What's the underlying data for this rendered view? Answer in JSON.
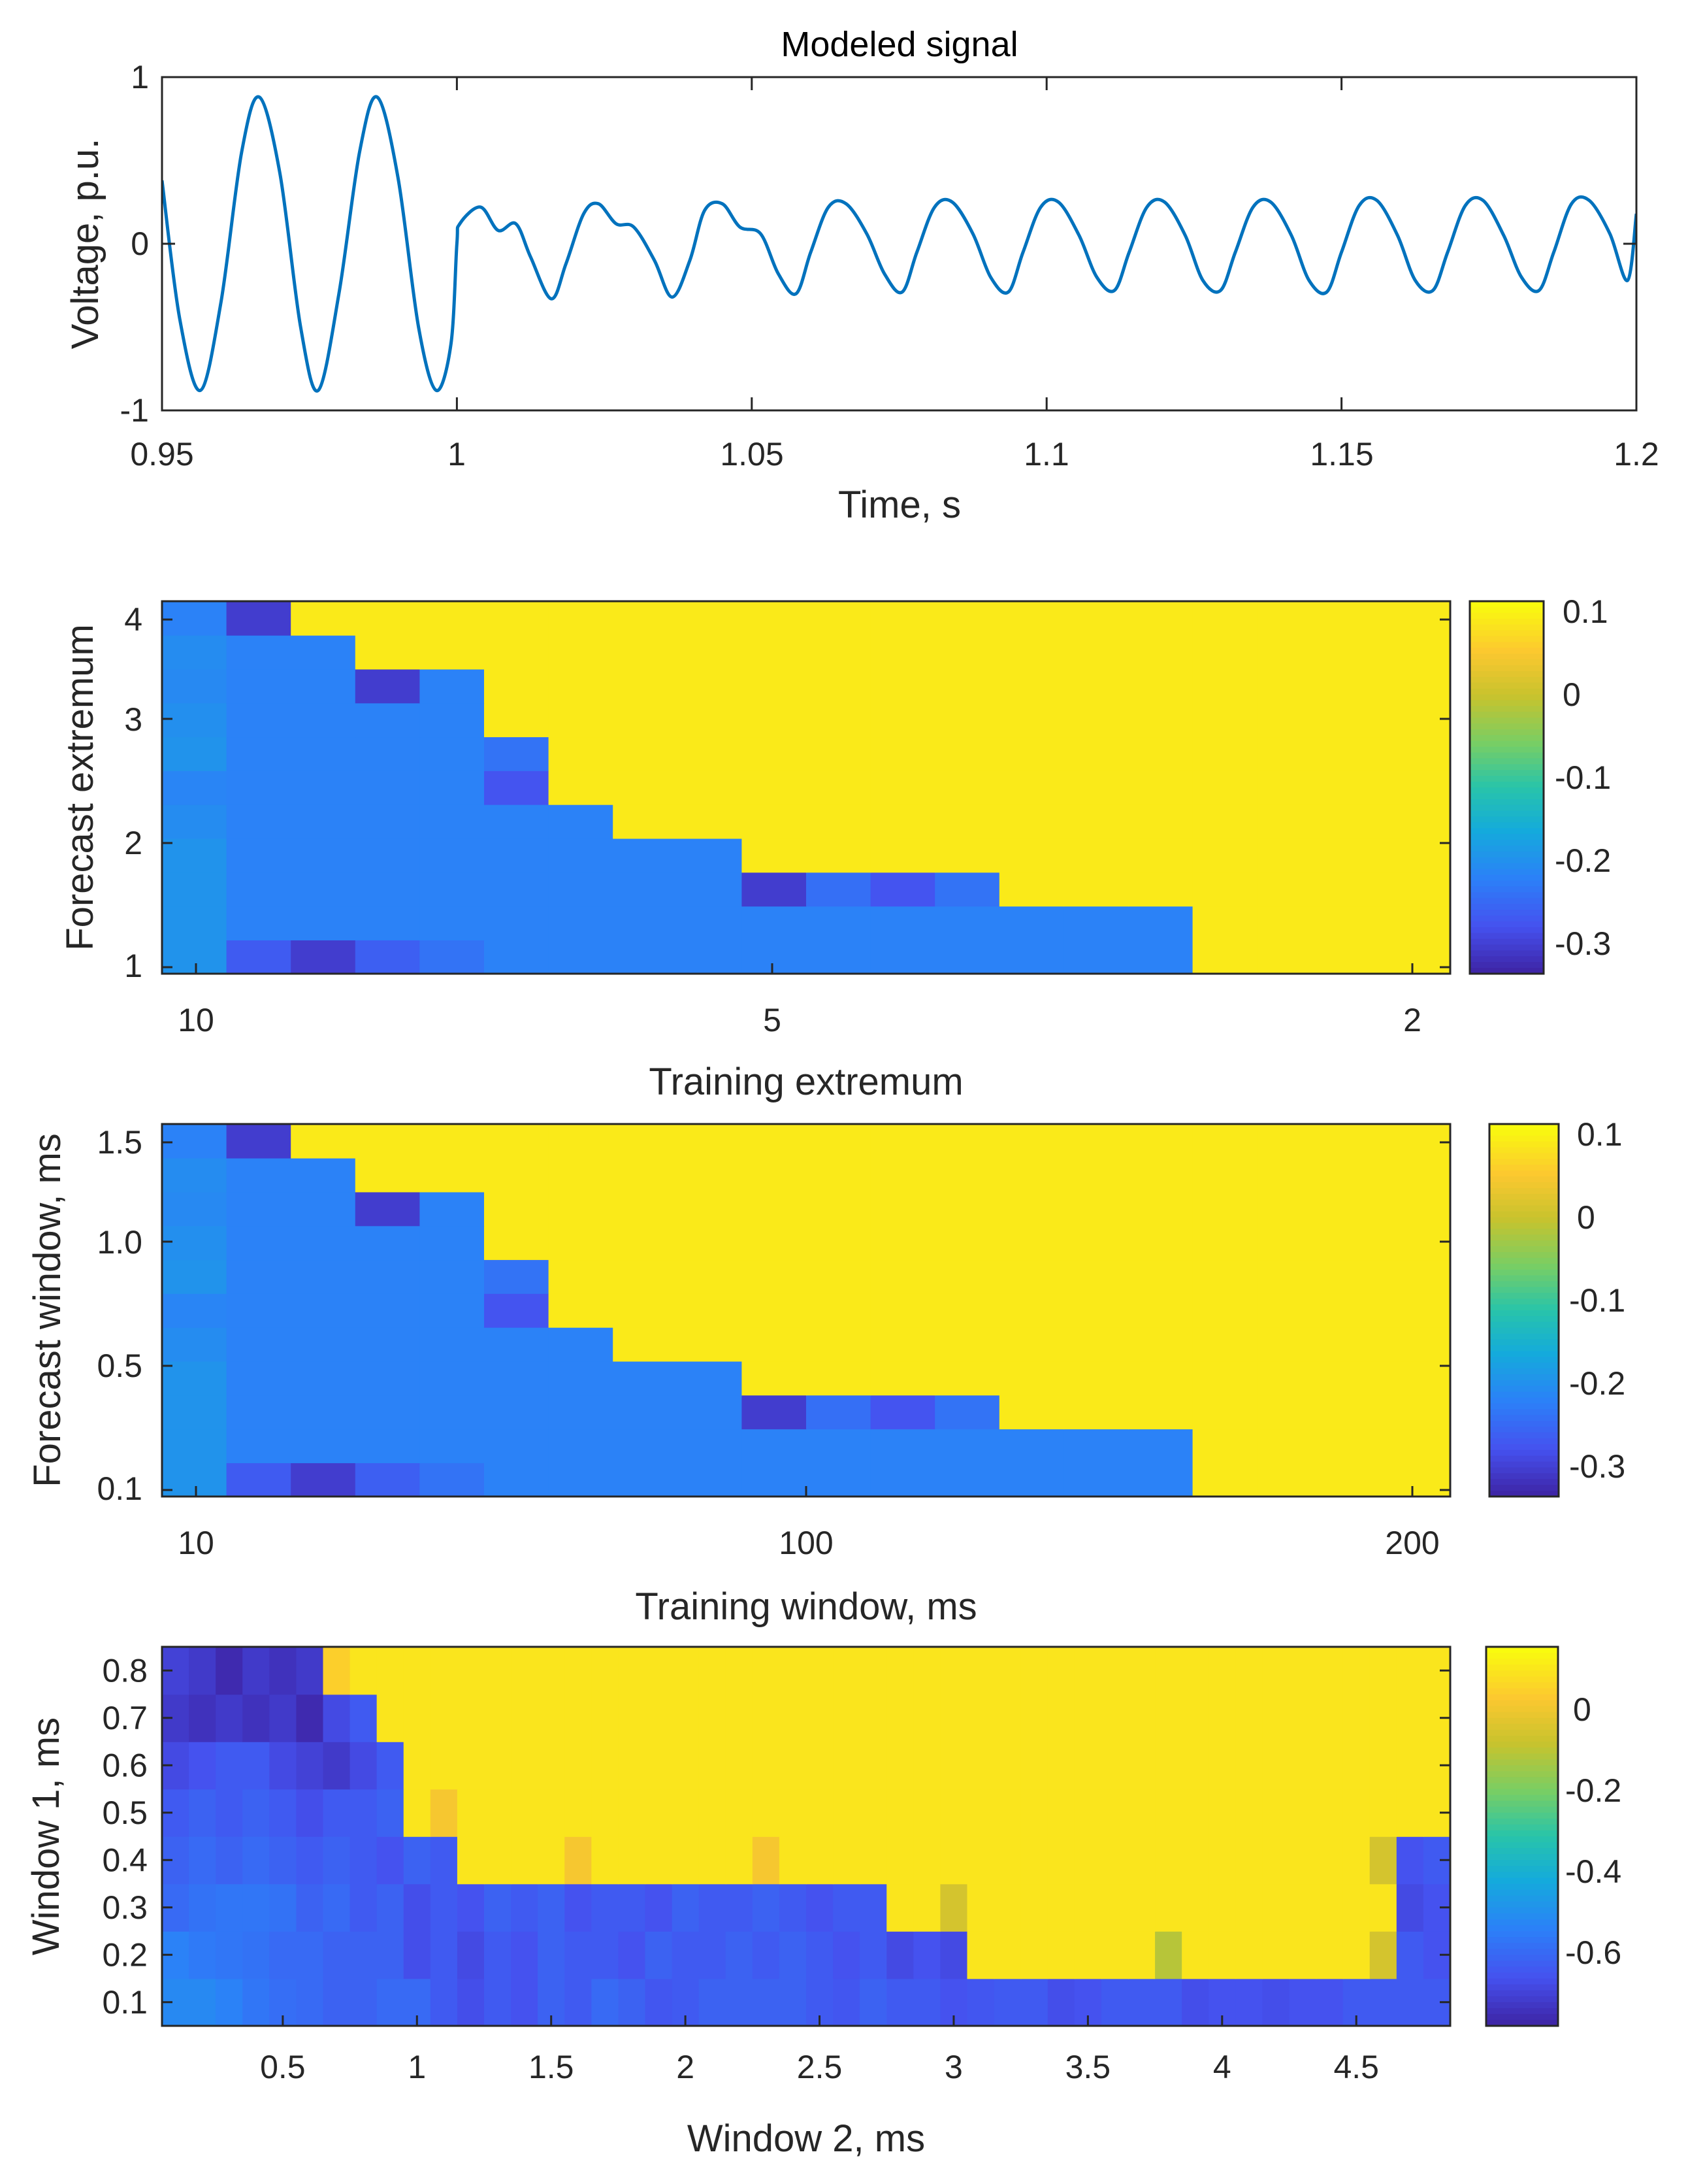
{
  "figure": {
    "signal": {
      "title": "Modeled signal",
      "xlabel": "Time, s",
      "ylabel": "Voltage, p.u.",
      "xticks": [
        "0.95",
        "1",
        "1.05",
        "1.1",
        "1.15",
        "1.2"
      ],
      "yticks": [
        "-1",
        "0",
        "1"
      ]
    },
    "heat1": {
      "xlabel": "Training extremum",
      "ylabel": "Forecast extremum",
      "xticks": [
        "10",
        "5",
        "2"
      ],
      "yticks": [
        "1",
        "2",
        "3",
        "4"
      ],
      "cbar_ticks": [
        "0.1",
        "0",
        "-0.1",
        "-0.2",
        "-0.3"
      ]
    },
    "heat2": {
      "xlabel": "Training window, ms",
      "ylabel": "Forecast window, ms",
      "xticks": [
        "10",
        "100",
        "200"
      ],
      "yticks": [
        "0.1",
        "0.5",
        "1.0",
        "1.5"
      ],
      "cbar_ticks": [
        "0.1",
        "0",
        "-0.1",
        "-0.2",
        "-0.3"
      ]
    },
    "heat3": {
      "xlabel": "Window 2, ms",
      "ylabel": "Window 1, ms",
      "xticks": [
        "0.5",
        "1",
        "1.5",
        "2",
        "2.5",
        "3",
        "3.5",
        "4",
        "4.5"
      ],
      "yticks": [
        "0.1",
        "0.2",
        "0.3",
        "0.4",
        "0.5",
        "0.6",
        "0.7",
        "0.8"
      ],
      "cbar_ticks": [
        "0",
        "-0.2",
        "-0.4",
        "-0.6"
      ]
    }
  },
  "chart_data": [
    {
      "type": "line",
      "title": "Modeled signal",
      "xlabel": "Time, s",
      "ylabel": "Voltage, p.u.",
      "xlim": [
        0.95,
        1.2
      ],
      "ylim": [
        -1,
        1
      ],
      "line_color": "#0072BD",
      "series": [
        {
          "x": [
            0.95,
            0.953,
            0.9565,
            0.96,
            0.9635,
            0.9665,
            0.97,
            0.9735,
            0.9765,
            0.98,
            0.9835,
            0.9865,
            0.99,
            0.9935,
            0.9965,
            0.999,
            1.0,
            1.0005,
            1.004,
            1.007,
            1.01,
            1.0125,
            1.016,
            1.0185,
            1.0215,
            1.024,
            1.027,
            1.03,
            1.0335,
            1.0365,
            1.0395,
            1.042,
            1.045,
            1.048,
            1.0515,
            1.0545,
            1.0575,
            1.06,
            1.063,
            1.066,
            1.0695,
            1.0725,
            1.0755,
            1.078,
            1.081,
            1.084,
            1.0875,
            1.0905,
            1.0935,
            1.096,
            1.099,
            1.102,
            1.1055,
            1.1085,
            1.1115,
            1.114,
            1.117,
            1.12,
            1.1235,
            1.1265,
            1.1295,
            1.132,
            1.135,
            1.138,
            1.1415,
            1.1445,
            1.1475,
            1.15,
            1.153,
            1.156,
            1.1595,
            1.1625,
            1.1655,
            1.168,
            1.171,
            1.174,
            1.1775,
            1.1805,
            1.1835,
            1.186,
            1.189,
            1.192,
            1.1955,
            1.1985,
            1.2
          ],
          "y": [
            0.38,
            -0.45,
            -0.88,
            -0.35,
            0.55,
            0.88,
            0.42,
            -0.5,
            -0.88,
            -0.3,
            0.55,
            0.88,
            0.4,
            -0.5,
            -0.88,
            -0.6,
            0.0,
            0.12,
            0.22,
            0.08,
            0.12,
            -0.08,
            -0.33,
            -0.12,
            0.18,
            0.24,
            0.12,
            0.1,
            -0.1,
            -0.32,
            -0.1,
            0.2,
            0.24,
            0.1,
            0.06,
            -0.18,
            -0.3,
            -0.05,
            0.22,
            0.24,
            0.06,
            -0.18,
            -0.29,
            -0.05,
            0.22,
            0.25,
            0.06,
            -0.2,
            -0.29,
            -0.05,
            0.22,
            0.25,
            0.05,
            -0.2,
            -0.28,
            -0.05,
            0.22,
            0.25,
            0.05,
            -0.22,
            -0.28,
            -0.05,
            0.22,
            0.25,
            0.05,
            -0.22,
            -0.29,
            -0.05,
            0.23,
            0.26,
            0.05,
            -0.22,
            -0.28,
            -0.05,
            0.23,
            0.26,
            0.05,
            -0.2,
            -0.28,
            -0.05,
            0.24,
            0.26,
            0.06,
            -0.22,
            0.18
          ]
        }
      ]
    },
    {
      "type": "heatmap",
      "xlabel": "Training extremum",
      "ylabel": "Forecast extremum",
      "colormap": "parula",
      "clim": [
        -0.35,
        0.12
      ],
      "x_tick_labels": [
        "10",
        "5",
        "2"
      ],
      "y_range": [
        1,
        4
      ],
      "cols": 20,
      "rows": 11,
      "rows_bottom_to_top": [
        [
          -0.205,
          -0.28,
          -0.32,
          -0.275,
          -0.25,
          -0.23,
          -0.23,
          -0.23,
          -0.23,
          -0.23,
          -0.23,
          -0.23,
          -0.23,
          -0.23,
          -0.23,
          -0.23,
          0.1,
          0.1,
          0.1,
          0.1
        ],
        [
          -0.205,
          -0.23,
          -0.23,
          -0.23,
          -0.23,
          -0.23,
          -0.23,
          -0.23,
          -0.23,
          -0.23,
          -0.23,
          -0.23,
          -0.23,
          -0.23,
          -0.23,
          -0.23,
          0.1,
          0.1,
          0.1,
          0.1
        ],
        [
          -0.205,
          -0.23,
          -0.23,
          -0.23,
          -0.23,
          -0.23,
          -0.23,
          -0.23,
          -0.23,
          -0.32,
          -0.255,
          -0.29,
          -0.25,
          0.1,
          0.1,
          0.1,
          0.1,
          0.1,
          0.1,
          0.1
        ],
        [
          -0.205,
          -0.23,
          -0.23,
          -0.23,
          -0.23,
          -0.23,
          -0.23,
          -0.23,
          -0.23,
          0.1,
          0.1,
          0.1,
          0.1,
          0.1,
          0.1,
          0.1,
          0.1,
          0.1,
          0.1,
          0.1
        ],
        [
          -0.215,
          -0.23,
          -0.23,
          -0.23,
          -0.23,
          -0.23,
          -0.23,
          0.1,
          0.1,
          0.1,
          0.1,
          0.1,
          0.1,
          0.1,
          0.1,
          0.1,
          0.1,
          0.1,
          0.1,
          0.1
        ],
        [
          -0.225,
          -0.23,
          -0.23,
          -0.23,
          -0.23,
          -0.29,
          0.1,
          0.1,
          0.1,
          0.1,
          0.1,
          0.1,
          0.1,
          0.1,
          0.1,
          0.1,
          0.1,
          0.1,
          0.1,
          0.1
        ],
        [
          -0.205,
          -0.23,
          -0.23,
          -0.23,
          -0.23,
          -0.25,
          0.1,
          0.1,
          0.1,
          0.1,
          0.1,
          0.1,
          0.1,
          0.1,
          0.1,
          0.1,
          0.1,
          0.1,
          0.1,
          0.1
        ],
        [
          -0.21,
          -0.23,
          -0.23,
          -0.23,
          -0.23,
          0.1,
          0.1,
          0.1,
          0.1,
          0.1,
          0.1,
          0.1,
          0.1,
          0.1,
          0.1,
          0.1,
          0.1,
          0.1,
          0.1,
          0.1
        ],
        [
          -0.22,
          -0.23,
          -0.23,
          -0.32,
          -0.23,
          0.1,
          0.1,
          0.1,
          0.1,
          0.1,
          0.1,
          0.1,
          0.1,
          0.1,
          0.1,
          0.1,
          0.1,
          0.1,
          0.1,
          0.1
        ],
        [
          -0.215,
          -0.23,
          -0.23,
          0.1,
          0.1,
          0.1,
          0.1,
          0.1,
          0.1,
          0.1,
          0.1,
          0.1,
          0.1,
          0.1,
          0.1,
          0.1,
          0.1,
          0.1,
          0.1,
          0.1
        ],
        [
          -0.23,
          -0.32,
          0.1,
          0.1,
          0.1,
          0.1,
          0.1,
          0.1,
          0.1,
          0.1,
          0.1,
          0.1,
          0.1,
          0.1,
          0.1,
          0.1,
          0.1,
          0.1,
          0.1,
          0.1
        ]
      ]
    },
    {
      "type": "heatmap",
      "xlabel": "Training window, ms",
      "ylabel": "Forecast window, ms",
      "colormap": "parula",
      "clim": [
        -0.35,
        0.12
      ],
      "x_tick_labels": [
        "10",
        "100",
        "200"
      ],
      "y_range": [
        0.1,
        1.5
      ],
      "cols": 20,
      "rows": 11,
      "rows_bottom_to_top": [
        [
          -0.205,
          -0.28,
          -0.32,
          -0.275,
          -0.25,
          -0.23,
          -0.23,
          -0.23,
          -0.23,
          -0.23,
          -0.23,
          -0.23,
          -0.23,
          -0.23,
          -0.23,
          -0.23,
          0.1,
          0.1,
          0.1,
          0.1
        ],
        [
          -0.205,
          -0.23,
          -0.23,
          -0.23,
          -0.23,
          -0.23,
          -0.23,
          -0.23,
          -0.23,
          -0.23,
          -0.23,
          -0.23,
          -0.23,
          -0.23,
          -0.23,
          -0.23,
          0.1,
          0.1,
          0.1,
          0.1
        ],
        [
          -0.205,
          -0.23,
          -0.23,
          -0.23,
          -0.23,
          -0.23,
          -0.23,
          -0.23,
          -0.23,
          -0.32,
          -0.255,
          -0.29,
          -0.25,
          0.1,
          0.1,
          0.1,
          0.1,
          0.1,
          0.1,
          0.1
        ],
        [
          -0.205,
          -0.23,
          -0.23,
          -0.23,
          -0.23,
          -0.23,
          -0.23,
          -0.23,
          -0.23,
          0.1,
          0.1,
          0.1,
          0.1,
          0.1,
          0.1,
          0.1,
          0.1,
          0.1,
          0.1,
          0.1
        ],
        [
          -0.215,
          -0.23,
          -0.23,
          -0.23,
          -0.23,
          -0.23,
          -0.23,
          0.1,
          0.1,
          0.1,
          0.1,
          0.1,
          0.1,
          0.1,
          0.1,
          0.1,
          0.1,
          0.1,
          0.1,
          0.1
        ],
        [
          -0.225,
          -0.23,
          -0.23,
          -0.23,
          -0.23,
          -0.29,
          0.1,
          0.1,
          0.1,
          0.1,
          0.1,
          0.1,
          0.1,
          0.1,
          0.1,
          0.1,
          0.1,
          0.1,
          0.1,
          0.1
        ],
        [
          -0.205,
          -0.23,
          -0.23,
          -0.23,
          -0.23,
          -0.25,
          0.1,
          0.1,
          0.1,
          0.1,
          0.1,
          0.1,
          0.1,
          0.1,
          0.1,
          0.1,
          0.1,
          0.1,
          0.1,
          0.1
        ],
        [
          -0.21,
          -0.23,
          -0.23,
          -0.23,
          -0.23,
          0.1,
          0.1,
          0.1,
          0.1,
          0.1,
          0.1,
          0.1,
          0.1,
          0.1,
          0.1,
          0.1,
          0.1,
          0.1,
          0.1,
          0.1
        ],
        [
          -0.22,
          -0.23,
          -0.23,
          -0.32,
          -0.23,
          0.1,
          0.1,
          0.1,
          0.1,
          0.1,
          0.1,
          0.1,
          0.1,
          0.1,
          0.1,
          0.1,
          0.1,
          0.1,
          0.1,
          0.1
        ],
        [
          -0.215,
          -0.23,
          -0.23,
          0.1,
          0.1,
          0.1,
          0.1,
          0.1,
          0.1,
          0.1,
          0.1,
          0.1,
          0.1,
          0.1,
          0.1,
          0.1,
          0.1,
          0.1,
          0.1,
          0.1
        ],
        [
          -0.23,
          -0.32,
          0.1,
          0.1,
          0.1,
          0.1,
          0.1,
          0.1,
          0.1,
          0.1,
          0.1,
          0.1,
          0.1,
          0.1,
          0.1,
          0.1,
          0.1,
          0.1,
          0.1,
          0.1
        ]
      ]
    },
    {
      "type": "heatmap",
      "xlabel": "Window 2, ms",
      "ylabel": "Window 1, ms",
      "colormap": "parula",
      "clim": [
        -0.75,
        0.15
      ],
      "x_range": [
        0.05,
        4.85
      ],
      "y_range": [
        0.05,
        0.85
      ],
      "cols": 48,
      "rows": 8,
      "rows_bottom_to_top": [
        [
          -0.5,
          -0.5,
          -0.52,
          -0.55,
          -0.57,
          -0.58,
          -0.6,
          -0.6,
          -0.58,
          -0.58,
          -0.62,
          -0.65,
          -0.62,
          -0.64,
          -0.6,
          -0.62,
          -0.58,
          -0.6,
          -0.63,
          -0.62,
          -0.6,
          -0.6,
          -0.6,
          -0.6,
          -0.62,
          -0.63,
          -0.6,
          -0.62,
          -0.62,
          -0.64,
          -0.63,
          -0.62,
          -0.62,
          -0.65,
          -0.64,
          -0.62,
          -0.62,
          -0.62,
          -0.65,
          -0.64,
          -0.64,
          -0.65,
          -0.64,
          -0.64,
          -0.62,
          -0.62,
          -0.62,
          -0.62
        ],
        [
          -0.52,
          -0.54,
          -0.55,
          -0.56,
          -0.58,
          -0.58,
          -0.6,
          -0.6,
          -0.6,
          -0.65,
          -0.62,
          -0.66,
          -0.62,
          -0.64,
          -0.6,
          -0.62,
          -0.62,
          -0.64,
          -0.6,
          -0.62,
          -0.62,
          -0.6,
          -0.62,
          -0.6,
          -0.62,
          -0.64,
          -0.62,
          -0.66,
          -0.64,
          -0.66,
          0.1,
          0.1,
          0.1,
          0.1,
          0.1,
          0.1,
          0.1,
          -0.1,
          0.1,
          0.1,
          0.1,
          0.1,
          0.1,
          0.1,
          0.1,
          -0.05,
          -0.62,
          -0.64
        ],
        [
          -0.58,
          -0.56,
          -0.55,
          -0.55,
          -0.56,
          -0.6,
          -0.58,
          -0.62,
          -0.6,
          -0.65,
          -0.62,
          -0.64,
          -0.6,
          -0.62,
          -0.6,
          -0.64,
          -0.62,
          -0.62,
          -0.64,
          -0.6,
          -0.62,
          -0.62,
          -0.6,
          -0.62,
          -0.64,
          -0.62,
          -0.62,
          0.1,
          0.1,
          -0.05,
          0.1,
          0.1,
          0.1,
          0.1,
          0.1,
          0.1,
          0.1,
          0.1,
          0.1,
          0.1,
          0.1,
          0.1,
          0.1,
          0.1,
          0.1,
          0.1,
          -0.66,
          -0.64
        ],
        [
          -0.6,
          -0.58,
          -0.6,
          -0.58,
          -0.6,
          -0.62,
          -0.6,
          -0.62,
          -0.64,
          -0.6,
          -0.62,
          0.1,
          0.1,
          0.1,
          0.1,
          0.02,
          0.1,
          0.1,
          0.1,
          0.1,
          0.1,
          0.1,
          0.02,
          0.1,
          0.1,
          0.1,
          0.1,
          0.1,
          0.1,
          0.1,
          0.1,
          0.1,
          0.1,
          0.1,
          0.1,
          0.1,
          0.1,
          0.1,
          0.1,
          0.1,
          0.1,
          0.1,
          0.1,
          0.1,
          0.1,
          -0.05,
          -0.64,
          -0.62
        ],
        [
          -0.62,
          -0.6,
          -0.62,
          -0.6,
          -0.62,
          -0.65,
          -0.62,
          -0.62,
          -0.6,
          0.1,
          0.02,
          0.1,
          0.1,
          0.1,
          0.1,
          0.1,
          0.1,
          0.1,
          0.1,
          0.1,
          0.1,
          0.1,
          0.1,
          0.1,
          0.1,
          0.1,
          0.1,
          0.1,
          0.1,
          0.1,
          0.1,
          0.1,
          0.1,
          0.1,
          0.1,
          0.1,
          0.1,
          0.1,
          0.1,
          0.1,
          0.1,
          0.1,
          0.1,
          0.1,
          0.1,
          0.1,
          0.1,
          0.1
        ],
        [
          -0.66,
          -0.64,
          -0.62,
          -0.62,
          -0.66,
          -0.68,
          -0.7,
          -0.66,
          -0.62,
          0.1,
          0.1,
          0.1,
          0.1,
          0.1,
          0.1,
          0.1,
          0.1,
          0.1,
          0.1,
          0.1,
          0.1,
          0.1,
          0.1,
          0.1,
          0.1,
          0.1,
          0.1,
          0.1,
          0.1,
          0.1,
          0.1,
          0.1,
          0.1,
          0.1,
          0.1,
          0.1,
          0.1,
          0.1,
          0.1,
          0.1,
          0.1,
          0.1,
          0.1,
          0.1,
          0.1,
          0.1,
          0.1,
          0.1
        ],
        [
          -0.7,
          -0.72,
          -0.7,
          -0.72,
          -0.7,
          -0.74,
          -0.66,
          -0.62,
          0.1,
          0.1,
          0.1,
          0.1,
          0.1,
          0.1,
          0.1,
          0.1,
          0.1,
          0.1,
          0.1,
          0.1,
          0.1,
          0.1,
          0.1,
          0.1,
          0.1,
          0.1,
          0.1,
          0.1,
          0.1,
          0.1,
          0.1,
          0.1,
          0.1,
          0.1,
          0.1,
          0.1,
          0.1,
          0.1,
          0.1,
          0.1,
          0.1,
          0.1,
          0.1,
          0.1,
          0.1,
          0.1,
          0.1,
          0.1
        ],
        [
          -0.68,
          -0.7,
          -0.74,
          -0.7,
          -0.72,
          -0.7,
          0.05,
          0.1,
          0.1,
          0.1,
          0.1,
          0.1,
          0.1,
          0.1,
          0.1,
          0.1,
          0.1,
          0.1,
          0.1,
          0.1,
          0.1,
          0.1,
          0.1,
          0.1,
          0.1,
          0.1,
          0.1,
          0.1,
          0.1,
          0.1,
          0.1,
          0.1,
          0.1,
          0.1,
          0.1,
          0.1,
          0.1,
          0.1,
          0.1,
          0.1,
          0.1,
          0.1,
          0.1,
          0.1,
          0.1,
          0.1,
          0.1,
          0.1
        ]
      ]
    }
  ]
}
